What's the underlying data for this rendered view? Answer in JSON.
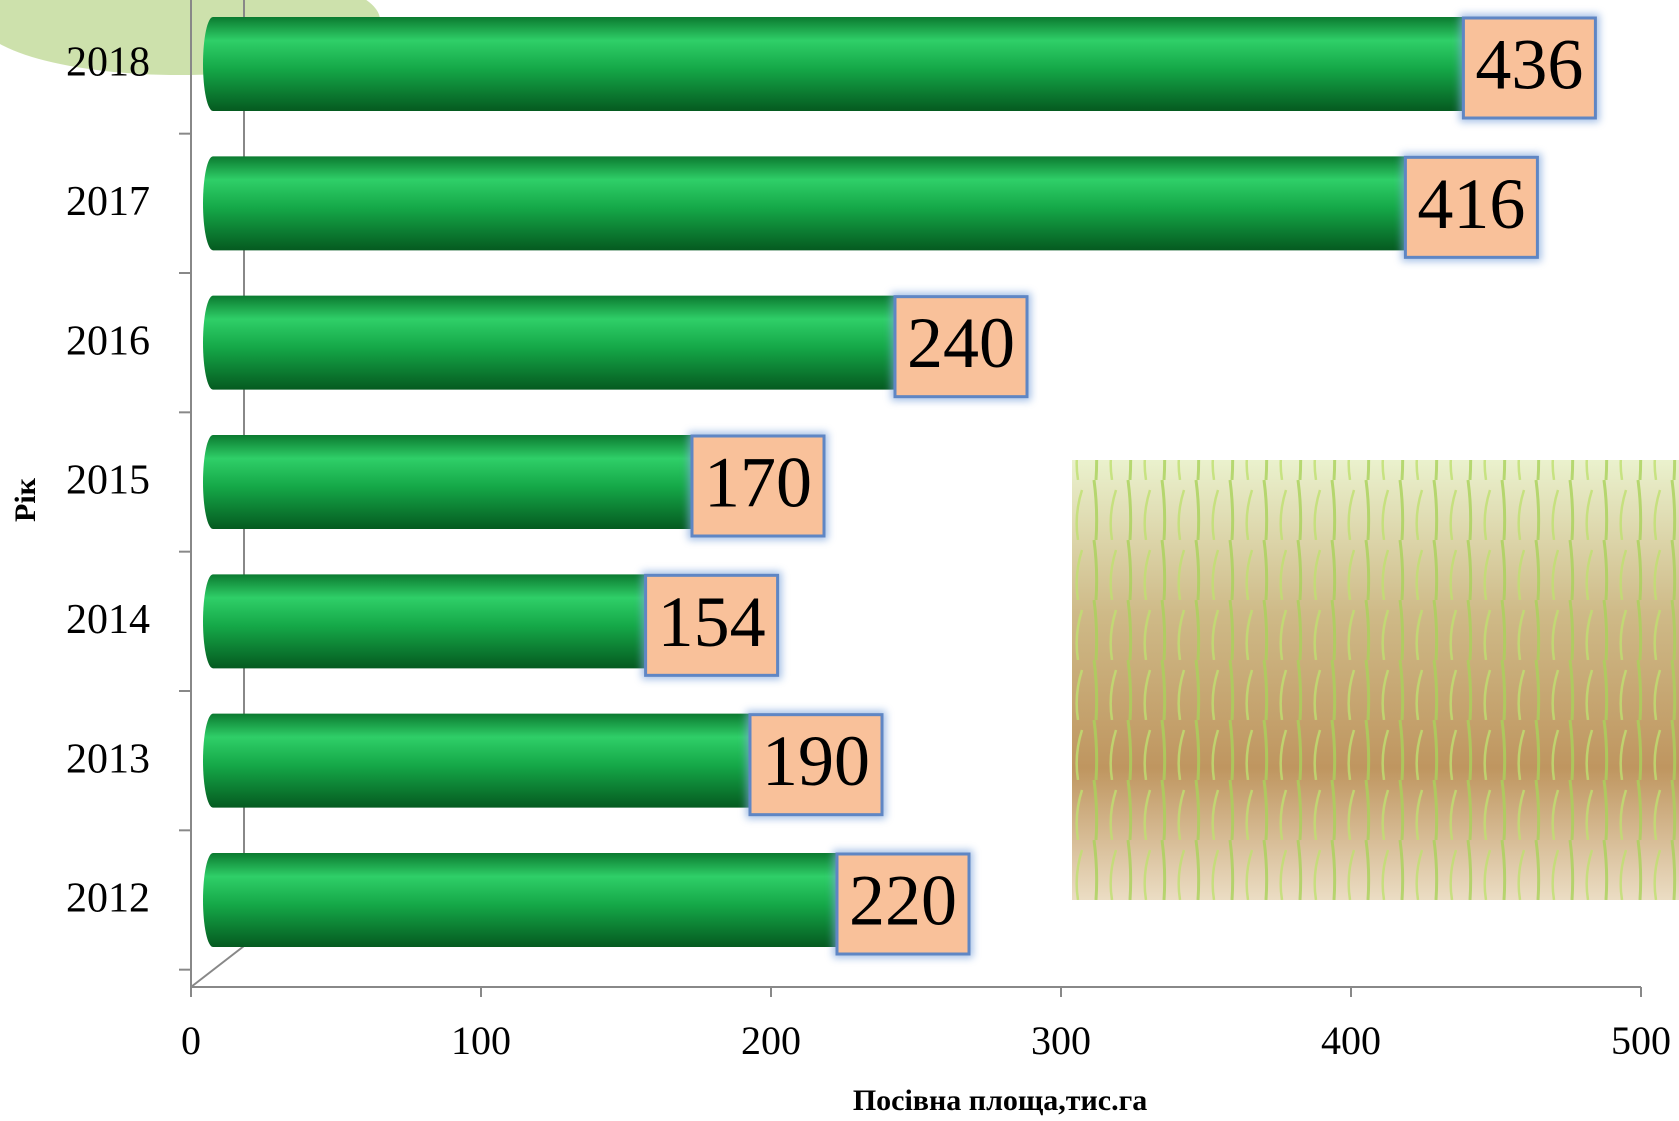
{
  "chart_data": {
    "type": "bar",
    "orientation": "horizontal",
    "categories": [
      "2012",
      "2013",
      "2014",
      "2015",
      "2016",
      "2017",
      "2018"
    ],
    "values": [
      220,
      190,
      154,
      170,
      240,
      416,
      436
    ],
    "color": "#16a64a",
    "label_color": "#f9c19a",
    "xlim": [
      0,
      500
    ],
    "xticks": [
      0,
      100,
      200,
      300,
      400,
      500
    ],
    "x_label": "Посівна площа,тис.га",
    "y_label": "Рік"
  }
}
